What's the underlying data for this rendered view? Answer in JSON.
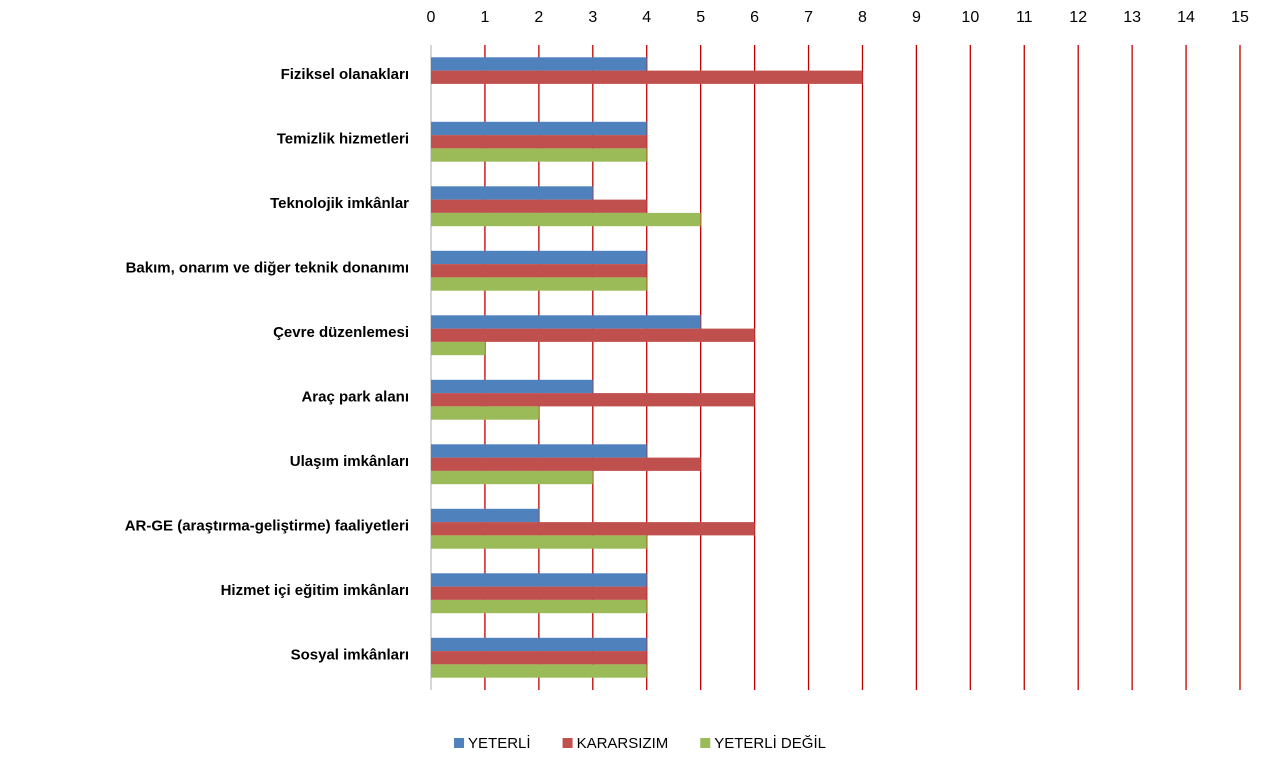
{
  "chart_data": {
    "type": "bar",
    "orientation": "horizontal",
    "categories": [
      "Fiziksel olanakları",
      "Temizlik hizmetleri",
      "Teknolojik imkânlar",
      "Bakım, onarım ve diğer teknik donanımı",
      "Çevre düzenlemesi",
      "Araç park alanı",
      "Ulaşım imkânları",
      "AR-GE (araştırma-geliştirme) faaliyetleri",
      "Hizmet içi eğitim imkânları",
      "Sosyal imkânları"
    ],
    "series": [
      {
        "name": "YETERLİ",
        "color": "#4f81bd",
        "values": [
          4,
          4,
          3,
          4,
          5,
          3,
          4,
          2,
          4,
          4
        ]
      },
      {
        "name": "KARARSIZIM",
        "color": "#c0504d",
        "values": [
          8,
          4,
          4,
          4,
          6,
          6,
          5,
          6,
          4,
          4
        ]
      },
      {
        "name": "YETERLİ DEĞİL",
        "color": "#9bbb59",
        "values": [
          0,
          4,
          5,
          4,
          1,
          2,
          3,
          4,
          4,
          4
        ]
      }
    ],
    "xlim": [
      0,
      15
    ],
    "xticks": [
      0,
      1,
      2,
      3,
      4,
      5,
      6,
      7,
      8,
      9,
      10,
      11,
      12,
      13,
      14,
      15
    ],
    "grid": true,
    "grid_color": "#c00000",
    "legend": "bottom"
  }
}
